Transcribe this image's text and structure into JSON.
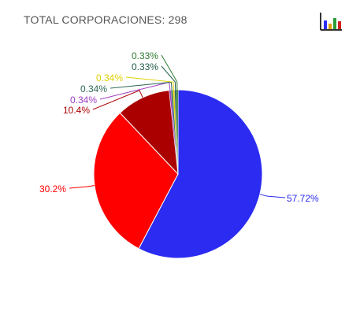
{
  "header": {
    "title": "TOTAL CORPORACIONES: 298"
  },
  "toolbar": {
    "chart_menu_icon": "bar-chart-icon"
  },
  "chart_data": {
    "type": "pie",
    "title": "TOTAL CORPORACIONES: 298",
    "slices": [
      {
        "value": 57.72,
        "label": "57.72%",
        "color": "#2b2bf2"
      },
      {
        "value": 30.2,
        "label": "30.2%",
        "color": "#ff0000"
      },
      {
        "value": 10.4,
        "label": "10.4%",
        "color": "#aa0000"
      },
      {
        "value": 0.34,
        "label": "0.34%",
        "color": "#a040c0"
      },
      {
        "value": 0.34,
        "label": "0.34%",
        "color": "#2f6b5a"
      },
      {
        "value": 0.34,
        "label": "0.34%",
        "color": "#e0d000"
      },
      {
        "value": 0.33,
        "label": "0.33%",
        "color": "#1f5a47"
      },
      {
        "value": 0.33,
        "label": "0.33%",
        "color": "#2e7d32"
      }
    ],
    "start_angle_deg": 0,
    "direction": "clockwise",
    "legend": "none"
  }
}
